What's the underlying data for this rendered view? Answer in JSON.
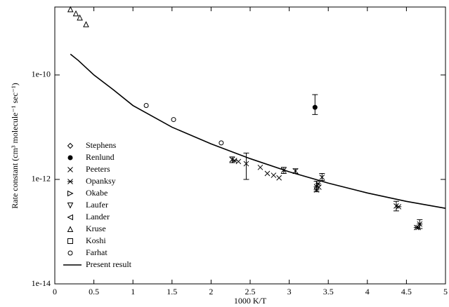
{
  "chart_data": {
    "type": "scatter",
    "x_label": "1000 K/T",
    "y_label": "Rate constant (cm³ molecule⁻¹ sec⁻¹)",
    "xlim": [
      0,
      5
    ],
    "xticks": [
      0,
      0.5,
      1,
      1.5,
      2,
      2.5,
      3,
      3.5,
      4,
      4.5,
      5
    ],
    "ylim": [
      1e-14,
      2e-09
    ],
    "yscale": "log",
    "yticks": [
      {
        "value": 1e-10,
        "label": "1e-10"
      },
      {
        "value": 1e-12,
        "label": "1e-12"
      },
      {
        "value": 1e-14,
        "label": "1e-14"
      }
    ],
    "legend": "lower left",
    "series": [
      {
        "name": "Stephens",
        "marker": "diamond",
        "color": "#000000",
        "x": [],
        "values": []
      },
      {
        "name": "Renlund",
        "marker": "filled-circle",
        "color": "#000000",
        "x": [
          3.33
        ],
        "values": [
          2.4e-11
        ],
        "errors": [
          [
            1.75e-11,
            4.2e-11
          ]
        ]
      },
      {
        "name": "Peeters",
        "marker": "cross",
        "color": "#000000",
        "x": [
          2.27,
          2.35,
          2.45,
          2.63,
          2.72,
          2.8,
          2.87,
          2.93,
          3.08,
          3.38,
          3.42,
          4.37,
          4.65
        ],
        "values": [
          2.4e-12,
          2.2e-12,
          2e-12,
          1.7e-12,
          1.3e-12,
          1.2e-12,
          1.07e-12,
          1.5e-12,
          1.45e-12,
          7.1e-13,
          1.1e-12,
          3.1e-13,
          1.2e-13
        ],
        "errors": [
          [
            2.1e-12,
            2.7e-12
          ],
          null,
          [
            1e-12,
            3.2e-12
          ],
          null,
          null,
          null,
          null,
          [
            1.3e-12,
            1.7e-12
          ],
          [
            1.3e-12,
            1.6e-12
          ],
          null,
          [
            9.5e-13,
            1.3e-12
          ],
          [
            2.5e-13,
            3.8e-13
          ],
          null
        ]
      },
      {
        "name": "Opanksy",
        "marker": "asterisk",
        "color": "#000000",
        "x": [
          2.3,
          3.35,
          3.35,
          3.37,
          4.4,
          4.67,
          4.63
        ],
        "values": [
          2.3e-12,
          7.3e-13,
          6.3e-13,
          8.3e-13,
          3e-13,
          1.4e-13,
          1.2e-13
        ],
        "errors": [
          null,
          [
            5.8e-13,
            9.2e-13
          ],
          null,
          null,
          null,
          [
            1.15e-13,
            1.7e-13
          ],
          null
        ]
      },
      {
        "name": "Okabe",
        "marker": "triangle-right",
        "color": "#000000",
        "x": [],
        "values": []
      },
      {
        "name": "Laufer",
        "marker": "triangle-down",
        "color": "#000000",
        "x": [],
        "values": []
      },
      {
        "name": "Lander",
        "marker": "triangle-left",
        "color": "#000000",
        "x": [],
        "values": []
      },
      {
        "name": "Kruse",
        "marker": "triangle-up",
        "color": "#000000",
        "x": [
          0.2,
          0.27,
          0.32,
          0.4
        ],
        "values": [
          1.8e-09,
          1.5e-09,
          1.25e-09,
          9.3e-10
        ]
      },
      {
        "name": "Koshi",
        "marker": "square",
        "color": "#000000",
        "x": [],
        "values": []
      },
      {
        "name": "Farhat",
        "marker": "circle",
        "color": "#000000",
        "x": [
          1.17,
          1.52,
          2.13
        ],
        "values": [
          2.6e-11,
          1.4e-11,
          5e-12
        ]
      },
      {
        "name": "Present result",
        "marker": "line",
        "color": "#000000",
        "x": [
          0.2,
          0.3,
          0.5,
          0.75,
          1,
          1.5,
          2,
          2.5,
          3,
          3.5,
          4,
          4.5,
          5
        ],
        "values": [
          2.5e-10,
          1.9e-10,
          1e-10,
          5.2e-11,
          2.6e-11,
          1e-11,
          4.8e-12,
          2.5e-12,
          1.4e-12,
          8.5e-13,
          5.5e-13,
          3.8e-13,
          2.8e-13
        ]
      }
    ]
  }
}
